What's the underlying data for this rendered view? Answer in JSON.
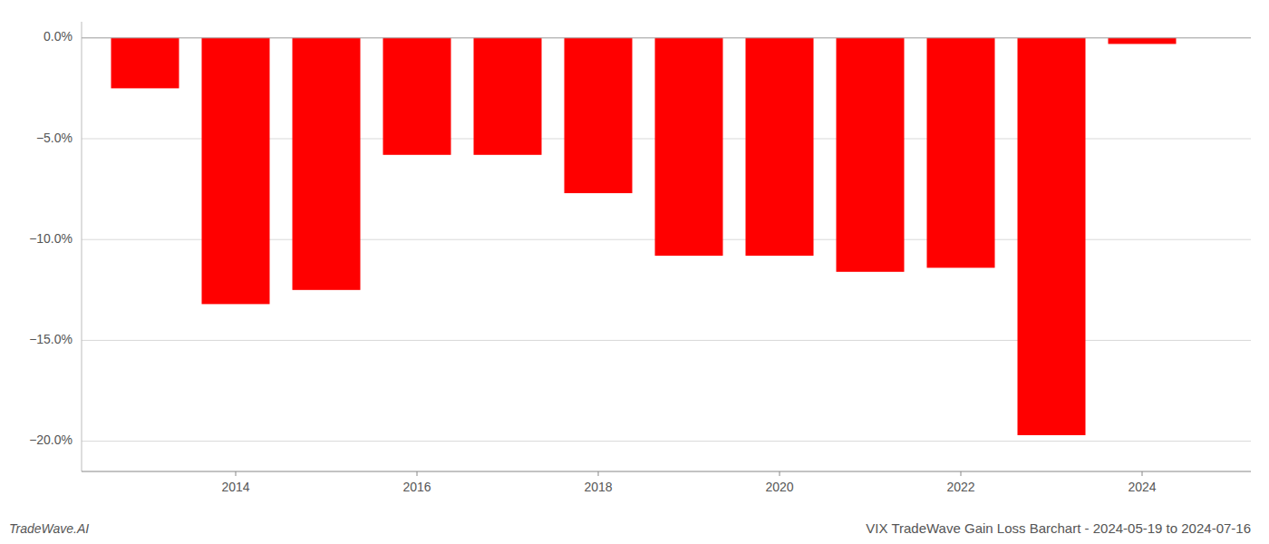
{
  "chart_data": {
    "type": "bar",
    "title": "VIX TradeWave Gain Loss Barchart - 2024-05-19 to 2024-07-16",
    "annotations": [
      "TradeWave.AI"
    ],
    "x": [
      2013,
      2014,
      2015,
      2016,
      2017,
      2018,
      2019,
      2020,
      2021,
      2022,
      2023,
      2024
    ],
    "values": [
      -2.5,
      -13.2,
      -12.5,
      -5.8,
      -5.8,
      -7.7,
      -10.8,
      -10.8,
      -11.6,
      -11.4,
      -19.7,
      -0.3
    ],
    "color": "#ff0000",
    "xlim": [
      2012.3,
      2025.2
    ],
    "xticks": [
      2014,
      2016,
      2018,
      2020,
      2022,
      2024
    ],
    "ylim": [
      -21.5,
      0.8
    ],
    "yticks": [
      {
        "value": 0.0,
        "label": "0.0%"
      },
      {
        "value": -5.0,
        "label": "−5.0%"
      },
      {
        "value": -10.0,
        "label": "−10.0%"
      },
      {
        "value": -15.0,
        "label": "−15.0%"
      },
      {
        "value": -20.0,
        "label": "−20.0%"
      }
    ],
    "grid": true
  }
}
